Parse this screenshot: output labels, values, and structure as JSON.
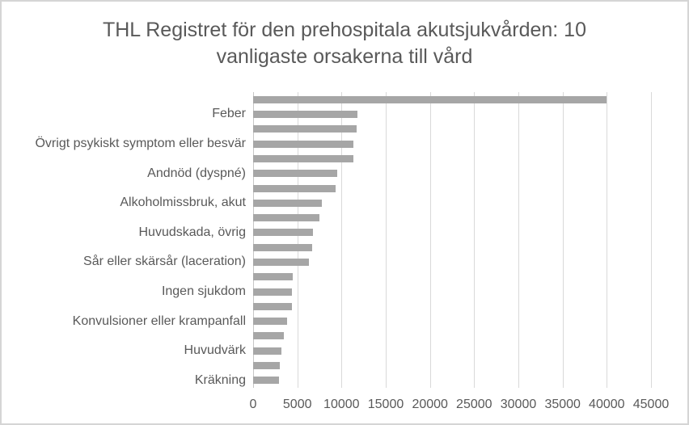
{
  "chart_data": {
    "type": "bar",
    "orientation": "horizontal",
    "title": "THL Registret för den prehospitala akutsjukvården: 10 vanligaste orsakerna till vård",
    "title_lines": [
      "THL Registret för den prehospitala akutsjukvården: 10",
      "vanligaste orsakerna till vård"
    ],
    "categories": [
      "",
      "Feber",
      "",
      "Övrigt psykiskt symptom eller besvär",
      "",
      "Andnöd (dyspné)",
      "",
      "Alkoholmissbruk, akut",
      "",
      "Huvudskada, övrig",
      "",
      "Sår eller skärsår (laceration)",
      "",
      "Ingen sjukdom",
      "",
      "Konvulsioner eller krampanfall",
      "",
      "Huvudvärk",
      "",
      "Kräkning"
    ],
    "values": [
      40000,
      11750,
      11700,
      11300,
      11300,
      9550,
      9350,
      7800,
      7500,
      6750,
      6650,
      6300,
      4500,
      4400,
      4350,
      3800,
      3450,
      3200,
      3050,
      2900
    ],
    "xlim": [
      0,
      45000
    ],
    "x_ticks": [
      0,
      5000,
      10000,
      15000,
      20000,
      25000,
      30000,
      35000,
      40000,
      45000
    ],
    "x_tick_labels": [
      "0",
      "5000",
      "10000",
      "15000",
      "20000",
      "25000",
      "30000",
      "35000",
      "40000",
      "45000"
    ],
    "xlabel": "",
    "ylabel": "",
    "grid": true,
    "legend": false,
    "colors": {
      "bar": "#a6a6a6",
      "gridline": "#d9d9d9",
      "axis_line": "#c6c6c6",
      "text": "#595959",
      "frame_border": "#d5d5d5",
      "background": "#ffffff"
    }
  }
}
